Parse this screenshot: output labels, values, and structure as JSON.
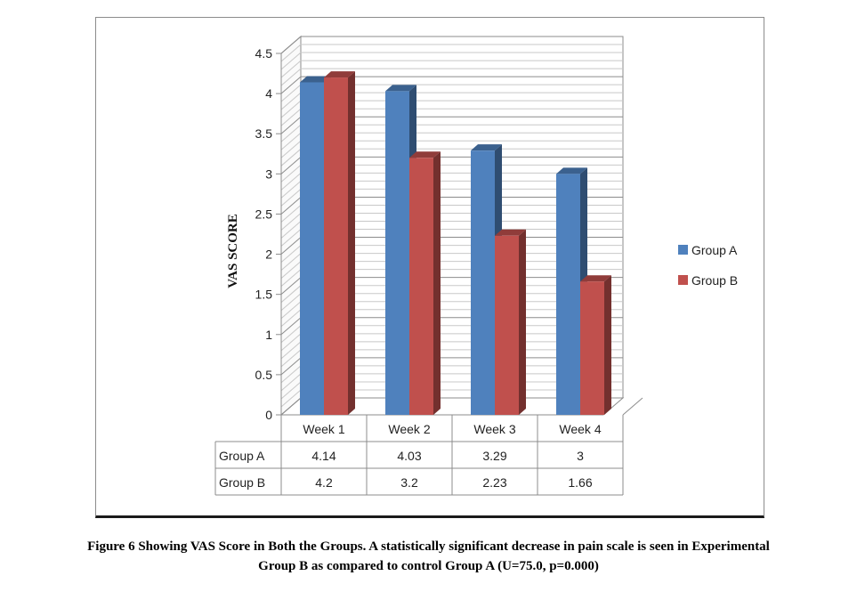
{
  "chart_data": {
    "type": "bar",
    "ylabel": "VAS SCORE",
    "xlabel": "",
    "ylim": [
      0,
      4.5
    ],
    "yticks": [
      "0",
      "0.5",
      "1",
      "1.5",
      "2",
      "2.5",
      "3",
      "3.5",
      "4",
      "4.5"
    ],
    "categories": [
      "Week 1",
      "Week 2",
      "Week 3",
      "Week 4"
    ],
    "series": [
      {
        "name": "Group A",
        "values": [
          4.14,
          4.03,
          3.29,
          3
        ],
        "labels": [
          "4.14",
          "4.03",
          "3.29",
          "3"
        ],
        "color": "#4f81bd"
      },
      {
        "name": "Group B",
        "values": [
          4.2,
          3.2,
          2.23,
          1.66
        ],
        "labels": [
          "4.2",
          "3.2",
          "2.23",
          "1.66"
        ],
        "color": "#c0504d"
      }
    ],
    "grid": true,
    "legend_position": "right",
    "data_table": true,
    "style": "3d-clustered-column"
  },
  "caption": {
    "line1": "Figure 6 Showing VAS Score in Both the Groups. A statistically significant decrease in pain scale is seen in Experimental",
    "line2": "Group B as compared to control Group A (U=75.0, p=0.000)"
  }
}
